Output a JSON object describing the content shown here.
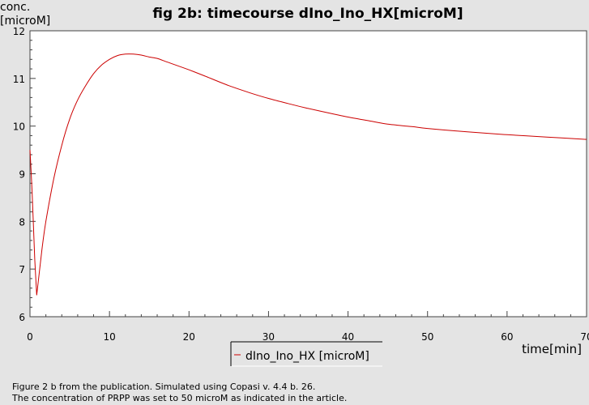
{
  "chart_data": {
    "type": "line",
    "title": "fig 2b: timecourse dIno_Ino_HX[microM]",
    "xlabel": "time[min]",
    "ylabel_lines": [
      "conc.",
      "[microM]"
    ],
    "xlim": [
      0,
      70
    ],
    "ylim": [
      6,
      12
    ],
    "x_ticks": [
      0,
      10,
      20,
      30,
      40,
      50,
      60,
      70
    ],
    "y_ticks": [
      6,
      7,
      8,
      9,
      10,
      11,
      12
    ],
    "grid": false,
    "legend_position": "bottom",
    "series": [
      {
        "name": "dIno_Ino_HX [microM]",
        "color": "#cc0000",
        "x": [
          0,
          0.3,
          0.6,
          0.85,
          1.5,
          2,
          3,
          4,
          5,
          6,
          7,
          8,
          9,
          10,
          11,
          12,
          13,
          14,
          15,
          16,
          17,
          18,
          20,
          22,
          25,
          28,
          30,
          33,
          35,
          38,
          40,
          43,
          45,
          48,
          50,
          55,
          60,
          65,
          70
        ],
        "y": [
          9.5,
          8.5,
          7.2,
          6.45,
          7.4,
          8.0,
          8.9,
          9.6,
          10.15,
          10.55,
          10.85,
          11.1,
          11.28,
          11.4,
          11.48,
          11.51,
          11.51,
          11.49,
          11.45,
          11.42,
          11.36,
          11.3,
          11.18,
          11.05,
          10.85,
          10.68,
          10.58,
          10.45,
          10.37,
          10.26,
          10.19,
          10.1,
          10.04,
          9.99,
          9.95,
          9.88,
          9.82,
          9.77,
          9.72
        ]
      }
    ]
  },
  "caption": {
    "line1": "Figure 2 b from the publication. Simulated using Copasi v. 4.4 b. 26.",
    "line2": "The concentration of PRPP was set to 50 microM as indicated in the article."
  }
}
